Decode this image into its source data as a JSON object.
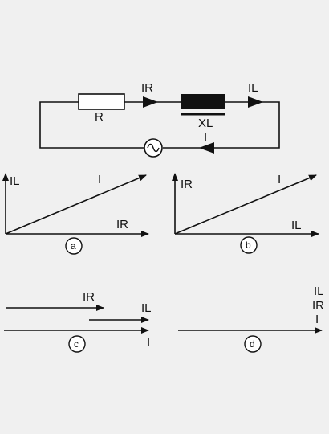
{
  "circuit": {
    "resistor_label": "R",
    "inductor_label": "XL",
    "current_r_label": "IR",
    "current_l_label": "IL",
    "current_total_label": "I",
    "source_icon": "ac-source-icon"
  },
  "panels": [
    {
      "id": "a",
      "vertical_label": "IL",
      "horizontal_label": "IR",
      "resultant_label": "I"
    },
    {
      "id": "b",
      "vertical_label": "IR",
      "horizontal_label": "IL",
      "resultant_label": "I"
    },
    {
      "id": "c",
      "top_label": "IR",
      "middle_label": "IL",
      "bottom_label": "I"
    },
    {
      "id": "d",
      "labels": [
        "IL",
        "IR",
        "I"
      ]
    }
  ]
}
